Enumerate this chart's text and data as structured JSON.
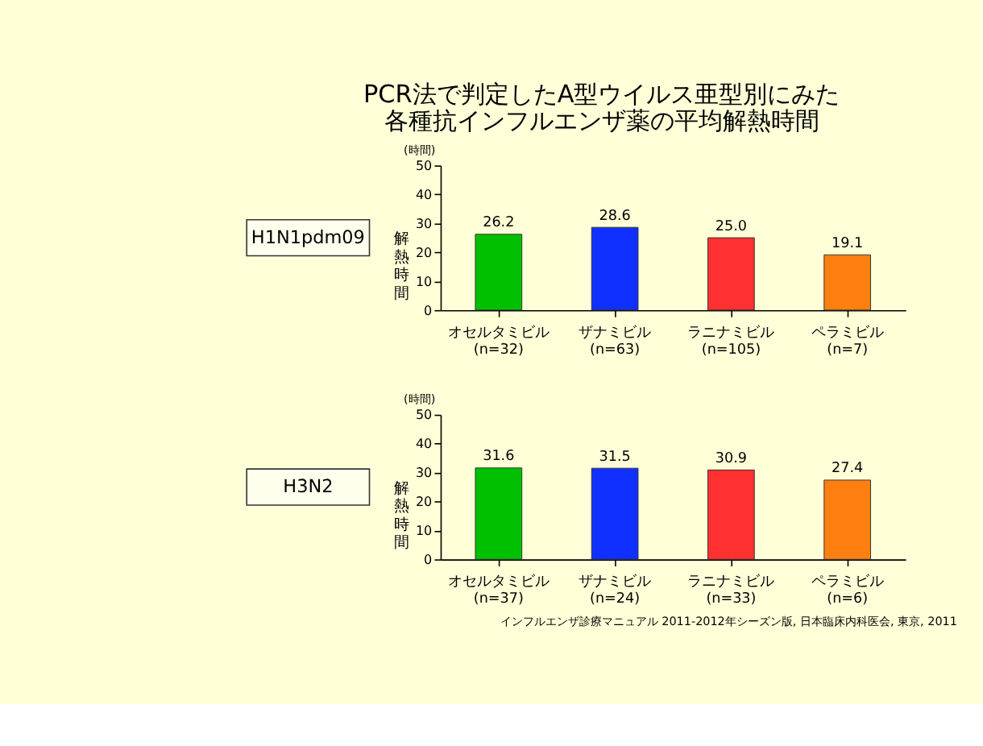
{
  "chart_data": [
    {
      "type": "bar",
      "title": "PCR法で判定したA型ウイルス亜型別にみた各種抗インフルエンザ薬の平均解熱時間",
      "subtitle": "H1N1pdm09",
      "ylabel": "解熱時間",
      "annotations": [
        "(時間)"
      ],
      "categories": [
        "オセルタミビル\n(n=32)",
        "ザナミビル\n(n=63)",
        "ラニナミビル\n(n=105)",
        "ペラミビル\n(n=7)"
      ],
      "values": [
        26.2,
        28.6,
        25.0,
        19.1
      ],
      "value_labels": [
        "26.2",
        "28.6",
        "25.0",
        "19.1"
      ],
      "colors": [
        "#00c000",
        "#1030ff",
        "#ff3030",
        "#ff8010"
      ],
      "ylim": [
        0,
        50
      ],
      "yticks": [
        0,
        10,
        20,
        30,
        40,
        50
      ],
      "grid": false,
      "legend": false
    },
    {
      "type": "bar",
      "subtitle": "H3N2",
      "ylabel": "解熱時間",
      "annotations": [
        "(時間)",
        "インフルエンザ診療マニュアル 2011-2012年シーズン版, 日本臨床内科医会, 東京, 2011"
      ],
      "categories": [
        "オセルタミビル\n(n=37)",
        "ザナミビル\n(n=24)",
        "ラニナミビル\n(n=33)",
        "ペラミビル\n(n=6)"
      ],
      "values": [
        31.6,
        31.5,
        30.9,
        27.4
      ],
      "value_labels": [
        "31.6",
        "31.5",
        "30.9",
        "27.4"
      ],
      "colors": [
        "#00c000",
        "#1030ff",
        "#ff3030",
        "#ff8010"
      ],
      "ylim": [
        0,
        50
      ],
      "yticks": [
        0,
        10,
        20,
        30,
        40,
        50
      ],
      "grid": false,
      "legend": false
    }
  ]
}
